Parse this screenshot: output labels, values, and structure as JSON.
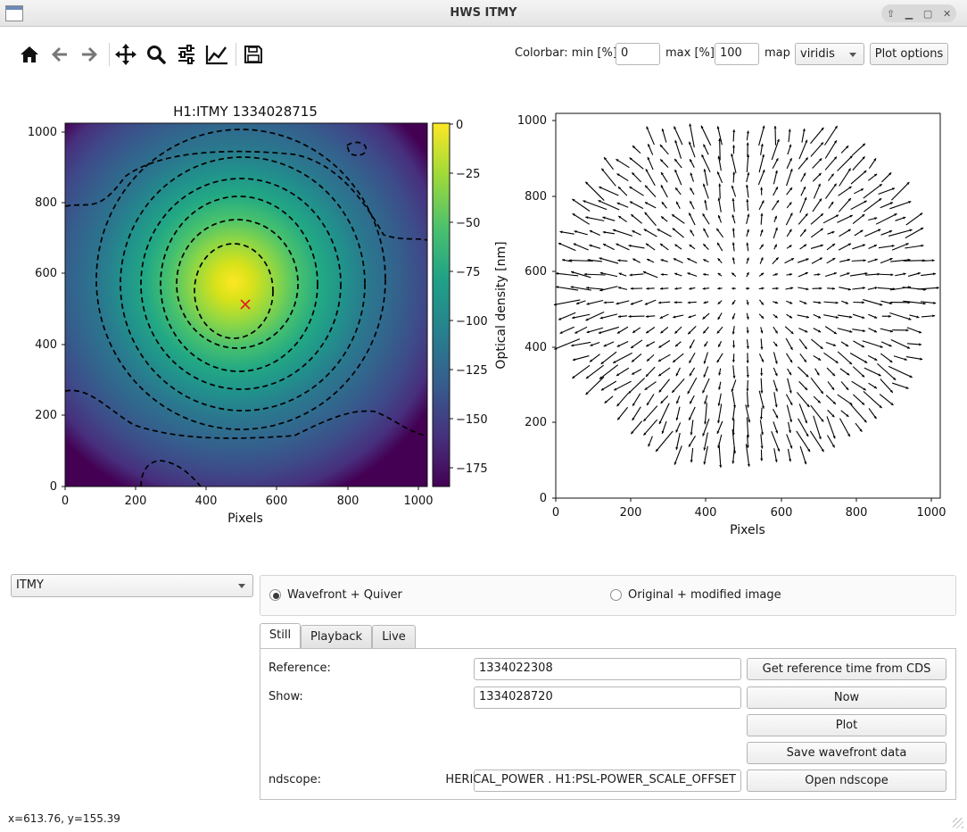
{
  "window": {
    "title": "HWS ITMY"
  },
  "toolbar": {
    "buttons": [
      "home-icon",
      "back-arrow-icon",
      "forward-arrow-icon",
      "pan-move-icon",
      "zoom-magnifier-icon",
      "subplot-config-icon",
      "edit-axes-curve-icon",
      "save-floppy-icon"
    ]
  },
  "colorbar_controls": {
    "label": "Colorbar: min [%]",
    "min_value": "0",
    "max_label": "max [%]",
    "max_value": "100",
    "map_label": "map",
    "map_value": "viridis",
    "plot_options_label": "Plot options"
  },
  "plot_left": {
    "title": "H1:ITMY 1334028715",
    "xlabel": "Pixels",
    "colorbar_label": "Optical density [nm]",
    "x_ticks": [
      "0",
      "200",
      "400",
      "600",
      "800",
      "1000"
    ],
    "y_ticks": [
      "0",
      "200",
      "400",
      "600",
      "800",
      "1000"
    ],
    "cb_ticks": [
      "0",
      "−25",
      "−50",
      "−75",
      "−100",
      "−125",
      "−150",
      "−175"
    ]
  },
  "plot_right": {
    "xlabel": "Pixels",
    "x_ticks": [
      "0",
      "200",
      "400",
      "600",
      "800",
      "1000"
    ],
    "y_ticks": [
      "0",
      "200",
      "400",
      "600",
      "800",
      "1000"
    ]
  },
  "chart_data": [
    {
      "type": "heatmap",
      "title": "H1:ITMY 1334028715",
      "xlabel": "Pixels",
      "ylabel": "",
      "xlim": [
        0,
        1024
      ],
      "ylim": [
        0,
        1024
      ],
      "colormap": "viridis",
      "colorbar": {
        "label": "Optical density [nm]",
        "range": [
          -188,
          0
        ],
        "ticks": [
          0,
          -25,
          -50,
          -75,
          -100,
          -125,
          -150,
          -175
        ]
      },
      "peak": {
        "x": 480,
        "y": 580,
        "value": 0
      },
      "marker": {
        "x": 510,
        "y": 510,
        "symbol": "x",
        "color": "#e02020"
      },
      "contours": "dashed black, approx. every 20 nm"
    },
    {
      "type": "scatter",
      "subtype": "quiver",
      "xlabel": "Pixels",
      "ylabel": "",
      "xlim": [
        0,
        1024
      ],
      "ylim": [
        0,
        1024
      ],
      "field": "gradient arrows pointing radially toward/away from center",
      "center": {
        "x": 500,
        "y": 560
      }
    }
  ],
  "mode_selector": {
    "value": "ITMY"
  },
  "view_mode": {
    "option1": "Wavefront + Quiver",
    "option2": "Original + modified image",
    "selected": "option1"
  },
  "tabs": [
    "Still",
    "Playback",
    "Live"
  ],
  "still": {
    "reference_label": "Reference:",
    "reference_value": "1334022308",
    "get_ref_button": "Get reference time from CDS",
    "show_label": "Show:",
    "show_value": "1334028720",
    "now_button": "Now",
    "plot_button": "Plot",
    "save_button": "Save wavefront data",
    "ndscope_label": "ndscope:",
    "ndscope_value": "HERICAL_POWER . H1:PSL-POWER_SCALE_OFFSET",
    "open_ndscope_button": "Open ndscope"
  },
  "statusbar": {
    "coords": "x=613.76, y=155.39"
  },
  "colors": {
    "accent": "#3a3a3a",
    "marker": "#e02020"
  }
}
